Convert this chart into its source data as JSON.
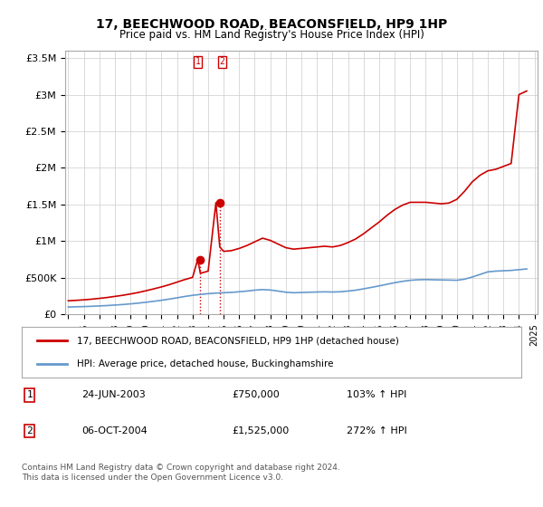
{
  "title": "17, BEECHWOOD ROAD, BEACONSFIELD, HP9 1HP",
  "subtitle": "Price paid vs. HM Land Registry's House Price Index (HPI)",
  "legend_line1": "17, BEECHWOOD ROAD, BEACONSFIELD, HP9 1HP (detached house)",
  "legend_line2": "HPI: Average price, detached house, Buckinghamshire",
  "transaction1_label": "1",
  "transaction1_date": "24-JUN-2003",
  "transaction1_price": "£750,000",
  "transaction1_hpi": "103% ↑ HPI",
  "transaction2_label": "2",
  "transaction2_date": "06-OCT-2004",
  "transaction2_price": "£1,525,000",
  "transaction2_hpi": "272% ↑ HPI",
  "footer": "Contains HM Land Registry data © Crown copyright and database right 2024.\nThis data is licensed under the Open Government Licence v3.0.",
  "red_color": "#cc0000",
  "blue_color": "#6699cc",
  "background_color": "#ffffff",
  "grid_color": "#cccccc",
  "hpi_x": [
    1995,
    1995.5,
    1996,
    1996.5,
    1997,
    1997.5,
    1998,
    1998.5,
    1999,
    1999.5,
    2000,
    2000.5,
    2001,
    2001.5,
    2002,
    2002.5,
    2003,
    2003.5,
    2004,
    2004.5,
    2005,
    2005.5,
    2006,
    2006.5,
    2007,
    2007.5,
    2008,
    2008.5,
    2009,
    2009.5,
    2010,
    2010.5,
    2011,
    2011.5,
    2012,
    2012.5,
    2013,
    2013.5,
    2014,
    2014.5,
    2015,
    2015.5,
    2016,
    2016.5,
    2017,
    2017.5,
    2018,
    2018.5,
    2019,
    2019.5,
    2020,
    2020.5,
    2021,
    2021.5,
    2022,
    2022.5,
    2023,
    2023.5,
    2024,
    2024.5
  ],
  "hpi_y": [
    100000,
    103000,
    106000,
    110000,
    115000,
    120000,
    127000,
    134000,
    143000,
    153000,
    165000,
    178000,
    192000,
    208000,
    226000,
    244000,
    260000,
    272000,
    282000,
    290000,
    295000,
    300000,
    308000,
    318000,
    330000,
    338000,
    332000,
    318000,
    302000,
    295000,
    298000,
    302000,
    305000,
    307000,
    305000,
    308000,
    318000,
    330000,
    348000,
    368000,
    388000,
    410000,
    432000,
    450000,
    465000,
    472000,
    475000,
    472000,
    470000,
    468000,
    465000,
    480000,
    510000,
    545000,
    580000,
    590000,
    595000,
    600000,
    610000,
    620000
  ],
  "red_x": [
    1995,
    1995.5,
    1996,
    1996.5,
    1997,
    1997.5,
    1998,
    1998.5,
    1999,
    1999.5,
    2000,
    2000.5,
    2001,
    2001.5,
    2002,
    2002.5,
    2003,
    2003.33,
    2003.5,
    2004,
    2004.5,
    2004.75,
    2005,
    2005.5,
    2006,
    2006.5,
    2007,
    2007.5,
    2008,
    2008.5,
    2009,
    2009.5,
    2010,
    2010.5,
    2011,
    2011.5,
    2012,
    2012.5,
    2013,
    2013.5,
    2014,
    2014.5,
    2015,
    2015.5,
    2016,
    2016.5,
    2017,
    2017.5,
    2018,
    2018.5,
    2019,
    2019.5,
    2020,
    2020.5,
    2021,
    2021.5,
    2022,
    2022.5,
    2023,
    2023.5,
    2024,
    2024.5
  ],
  "red_y": [
    185000,
    191000,
    198000,
    207000,
    218000,
    230000,
    245000,
    260000,
    278000,
    298000,
    322000,
    348000,
    375000,
    405000,
    440000,
    475000,
    505000,
    750000,
    560000,
    590000,
    1525000,
    920000,
    860000,
    870000,
    900000,
    940000,
    990000,
    1040000,
    1010000,
    960000,
    910000,
    890000,
    900000,
    910000,
    920000,
    930000,
    920000,
    940000,
    980000,
    1030000,
    1100000,
    1180000,
    1260000,
    1350000,
    1430000,
    1490000,
    1530000,
    1530000,
    1530000,
    1520000,
    1510000,
    1520000,
    1570000,
    1680000,
    1810000,
    1900000,
    1960000,
    1980000,
    2020000,
    2060000,
    3000000,
    3050000
  ],
  "marker1_x": 2003.47,
  "marker1_y": 750000,
  "marker2_x": 2004.75,
  "marker2_y": 1525000,
  "ylim_max": 3600000,
  "xlim_min": 1994.8,
  "xlim_max": 2025.2,
  "yticks": [
    0,
    500000,
    1000000,
    1500000,
    2000000,
    2500000,
    3000000,
    3500000
  ],
  "ytick_labels": [
    "£0",
    "£500K",
    "£1M",
    "£1.5M",
    "£2M",
    "£2.5M",
    "£3M",
    "£3.5M"
  ],
  "xticks": [
    1995,
    1996,
    1997,
    1998,
    1999,
    2000,
    2001,
    2002,
    2003,
    2004,
    2005,
    2006,
    2007,
    2008,
    2009,
    2010,
    2011,
    2012,
    2013,
    2014,
    2015,
    2016,
    2017,
    2018,
    2019,
    2020,
    2021,
    2022,
    2023,
    2024,
    2025
  ]
}
